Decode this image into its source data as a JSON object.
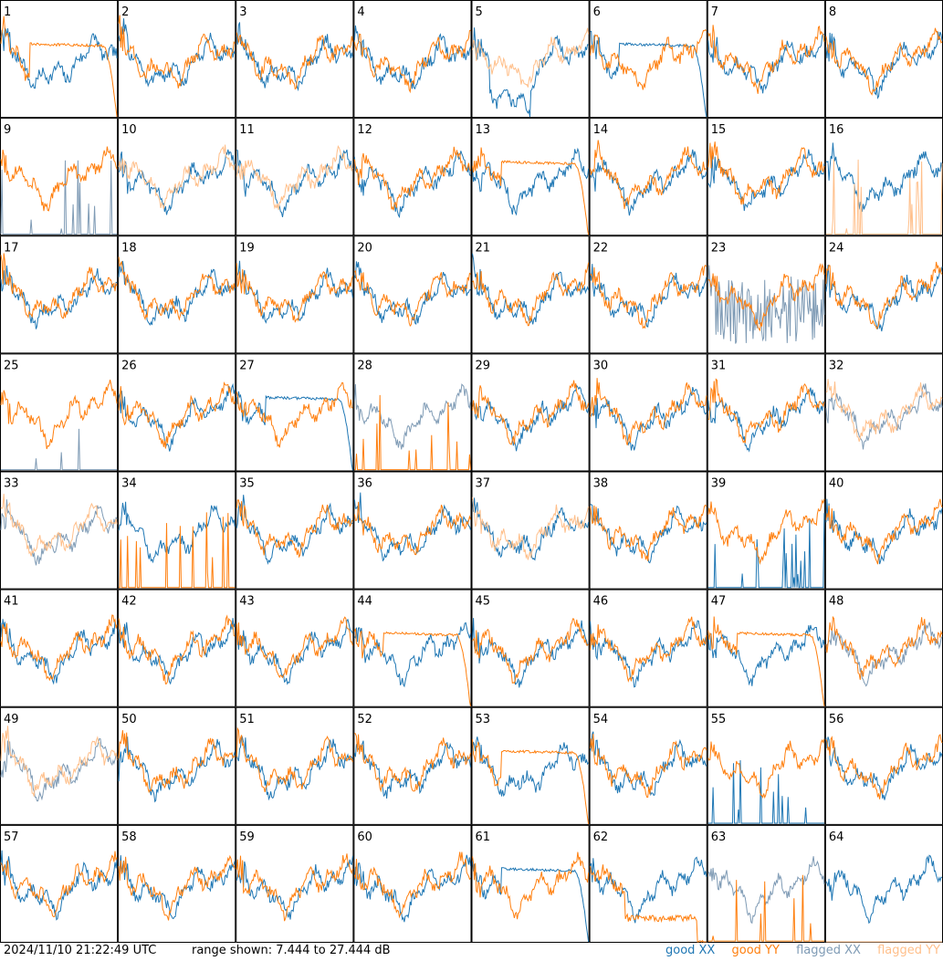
{
  "chart_data": {
    "type": "line",
    "panel_labels": [
      "1",
      "2",
      "3",
      "4",
      "5",
      "6",
      "7",
      "8",
      "9",
      "10",
      "11",
      "12",
      "13",
      "14",
      "15",
      "16",
      "17",
      "18",
      "19",
      "20",
      "21",
      "22",
      "23",
      "24",
      "25",
      "26",
      "27",
      "28",
      "29",
      "30",
      "31",
      "32",
      "33",
      "34",
      "35",
      "36",
      "37",
      "38",
      "39",
      "40",
      "41",
      "42",
      "43",
      "44",
      "45",
      "46",
      "47",
      "48",
      "49",
      "50",
      "51",
      "52",
      "53",
      "54",
      "55",
      "56",
      "57",
      "58",
      "59",
      "60",
      "61",
      "62",
      "63",
      "64"
    ],
    "ylim": [
      7.444,
      27.444
    ],
    "series": [
      {
        "name": "good XX",
        "color": "#1f77b4"
      },
      {
        "name": "good YY",
        "color": "#ff7f0e"
      },
      {
        "name": "flagged XX",
        "color": "#7f9bb5"
      },
      {
        "name": "flagged YY",
        "color": "#ffbf8a"
      }
    ],
    "panel_status": {
      "5": [
        "good",
        "flagged"
      ],
      "9": [
        "flagged",
        "good"
      ],
      "10": [
        "good",
        "flagged"
      ],
      "11": [
        "good",
        "flagged"
      ],
      "16": [
        "good",
        "flagged"
      ],
      "23": [
        "flagged",
        "good"
      ],
      "25": [
        "flagged",
        "good"
      ],
      "28": [
        "flagged",
        "good"
      ],
      "32": [
        "flagged",
        "flagged"
      ],
      "33": [
        "flagged",
        "flagged"
      ],
      "34": [
        "good",
        "good"
      ],
      "37": [
        "good",
        "flagged"
      ],
      "39": [
        "good",
        "good"
      ],
      "48": [
        "flagged",
        "good"
      ],
      "49": [
        "flagged",
        "flagged"
      ],
      "55": [
        "good",
        "good"
      ],
      "63": [
        "flagged",
        "good"
      ],
      "64": [
        "good",
        "flagged"
      ]
    },
    "panel_shapes": {
      "1": "yy_rolloff",
      "5": "xx_dip",
      "6": "xx_rolloff",
      "9": "xx_spikes",
      "13": "yy_rolloff",
      "16": "yy_spikes",
      "23": "xx_noisy",
      "25": "xx_spikes",
      "27": "xx_rolloff",
      "28": "yy_spikes",
      "34": "yy_spikes",
      "39": "xx_spikes",
      "44": "yy_rolloff",
      "47": "yy_rolloff",
      "53": "yy_rolloff",
      "55": "xx_spikes",
      "61": "xx_rolloff",
      "62": "yy_low",
      "63": "yy_spikes",
      "64": "yy_flat"
    }
  },
  "footer": {
    "timestamp": "2024/11/10 21:22:49 UTC",
    "range_text": "range shown: 7.444 to 27.444 dB"
  },
  "legend": {
    "good_xx": "good XX",
    "good_yy": "good YY",
    "flagged_xx": "flagged XX",
    "flagged_yy": "flagged YY"
  }
}
